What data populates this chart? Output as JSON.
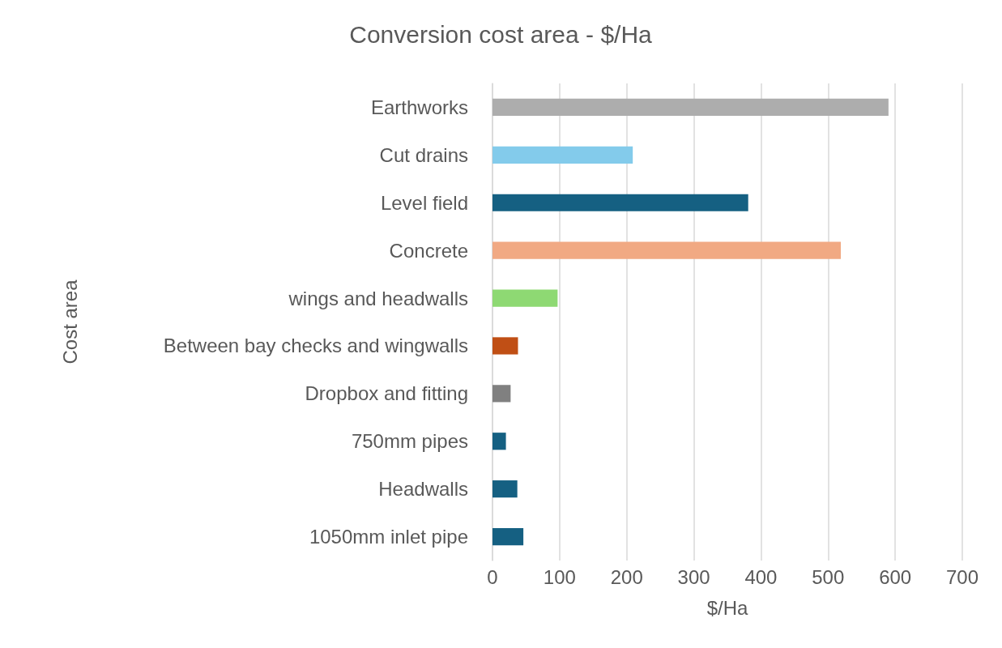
{
  "chart_data": {
    "type": "bar",
    "orientation": "horizontal",
    "title": "Conversion cost area - $/Ha",
    "xlabel": "$/Ha",
    "ylabel": "Cost area",
    "categories": [
      "Earthworks",
      "Cut drains",
      "Level field",
      "Concrete",
      "wings and headwalls",
      "Between bay checks and wingwalls",
      "Dropbox and fitting",
      "750mm pipes",
      "Headwalls",
      "1050mm inlet pipe"
    ],
    "values": [
      590,
      209,
      381,
      519,
      97,
      38,
      27,
      20,
      37,
      46
    ],
    "colors": [
      "#adadad",
      "#83cbeb",
      "#156082",
      "#f1a983",
      "#8ed973",
      "#c04f15",
      "#808080",
      "#156082",
      "#156082",
      "#156082"
    ],
    "xlim": [
      0,
      700
    ],
    "xticks": [
      0,
      100,
      200,
      300,
      400,
      500,
      600,
      700
    ],
    "grid": "x"
  }
}
